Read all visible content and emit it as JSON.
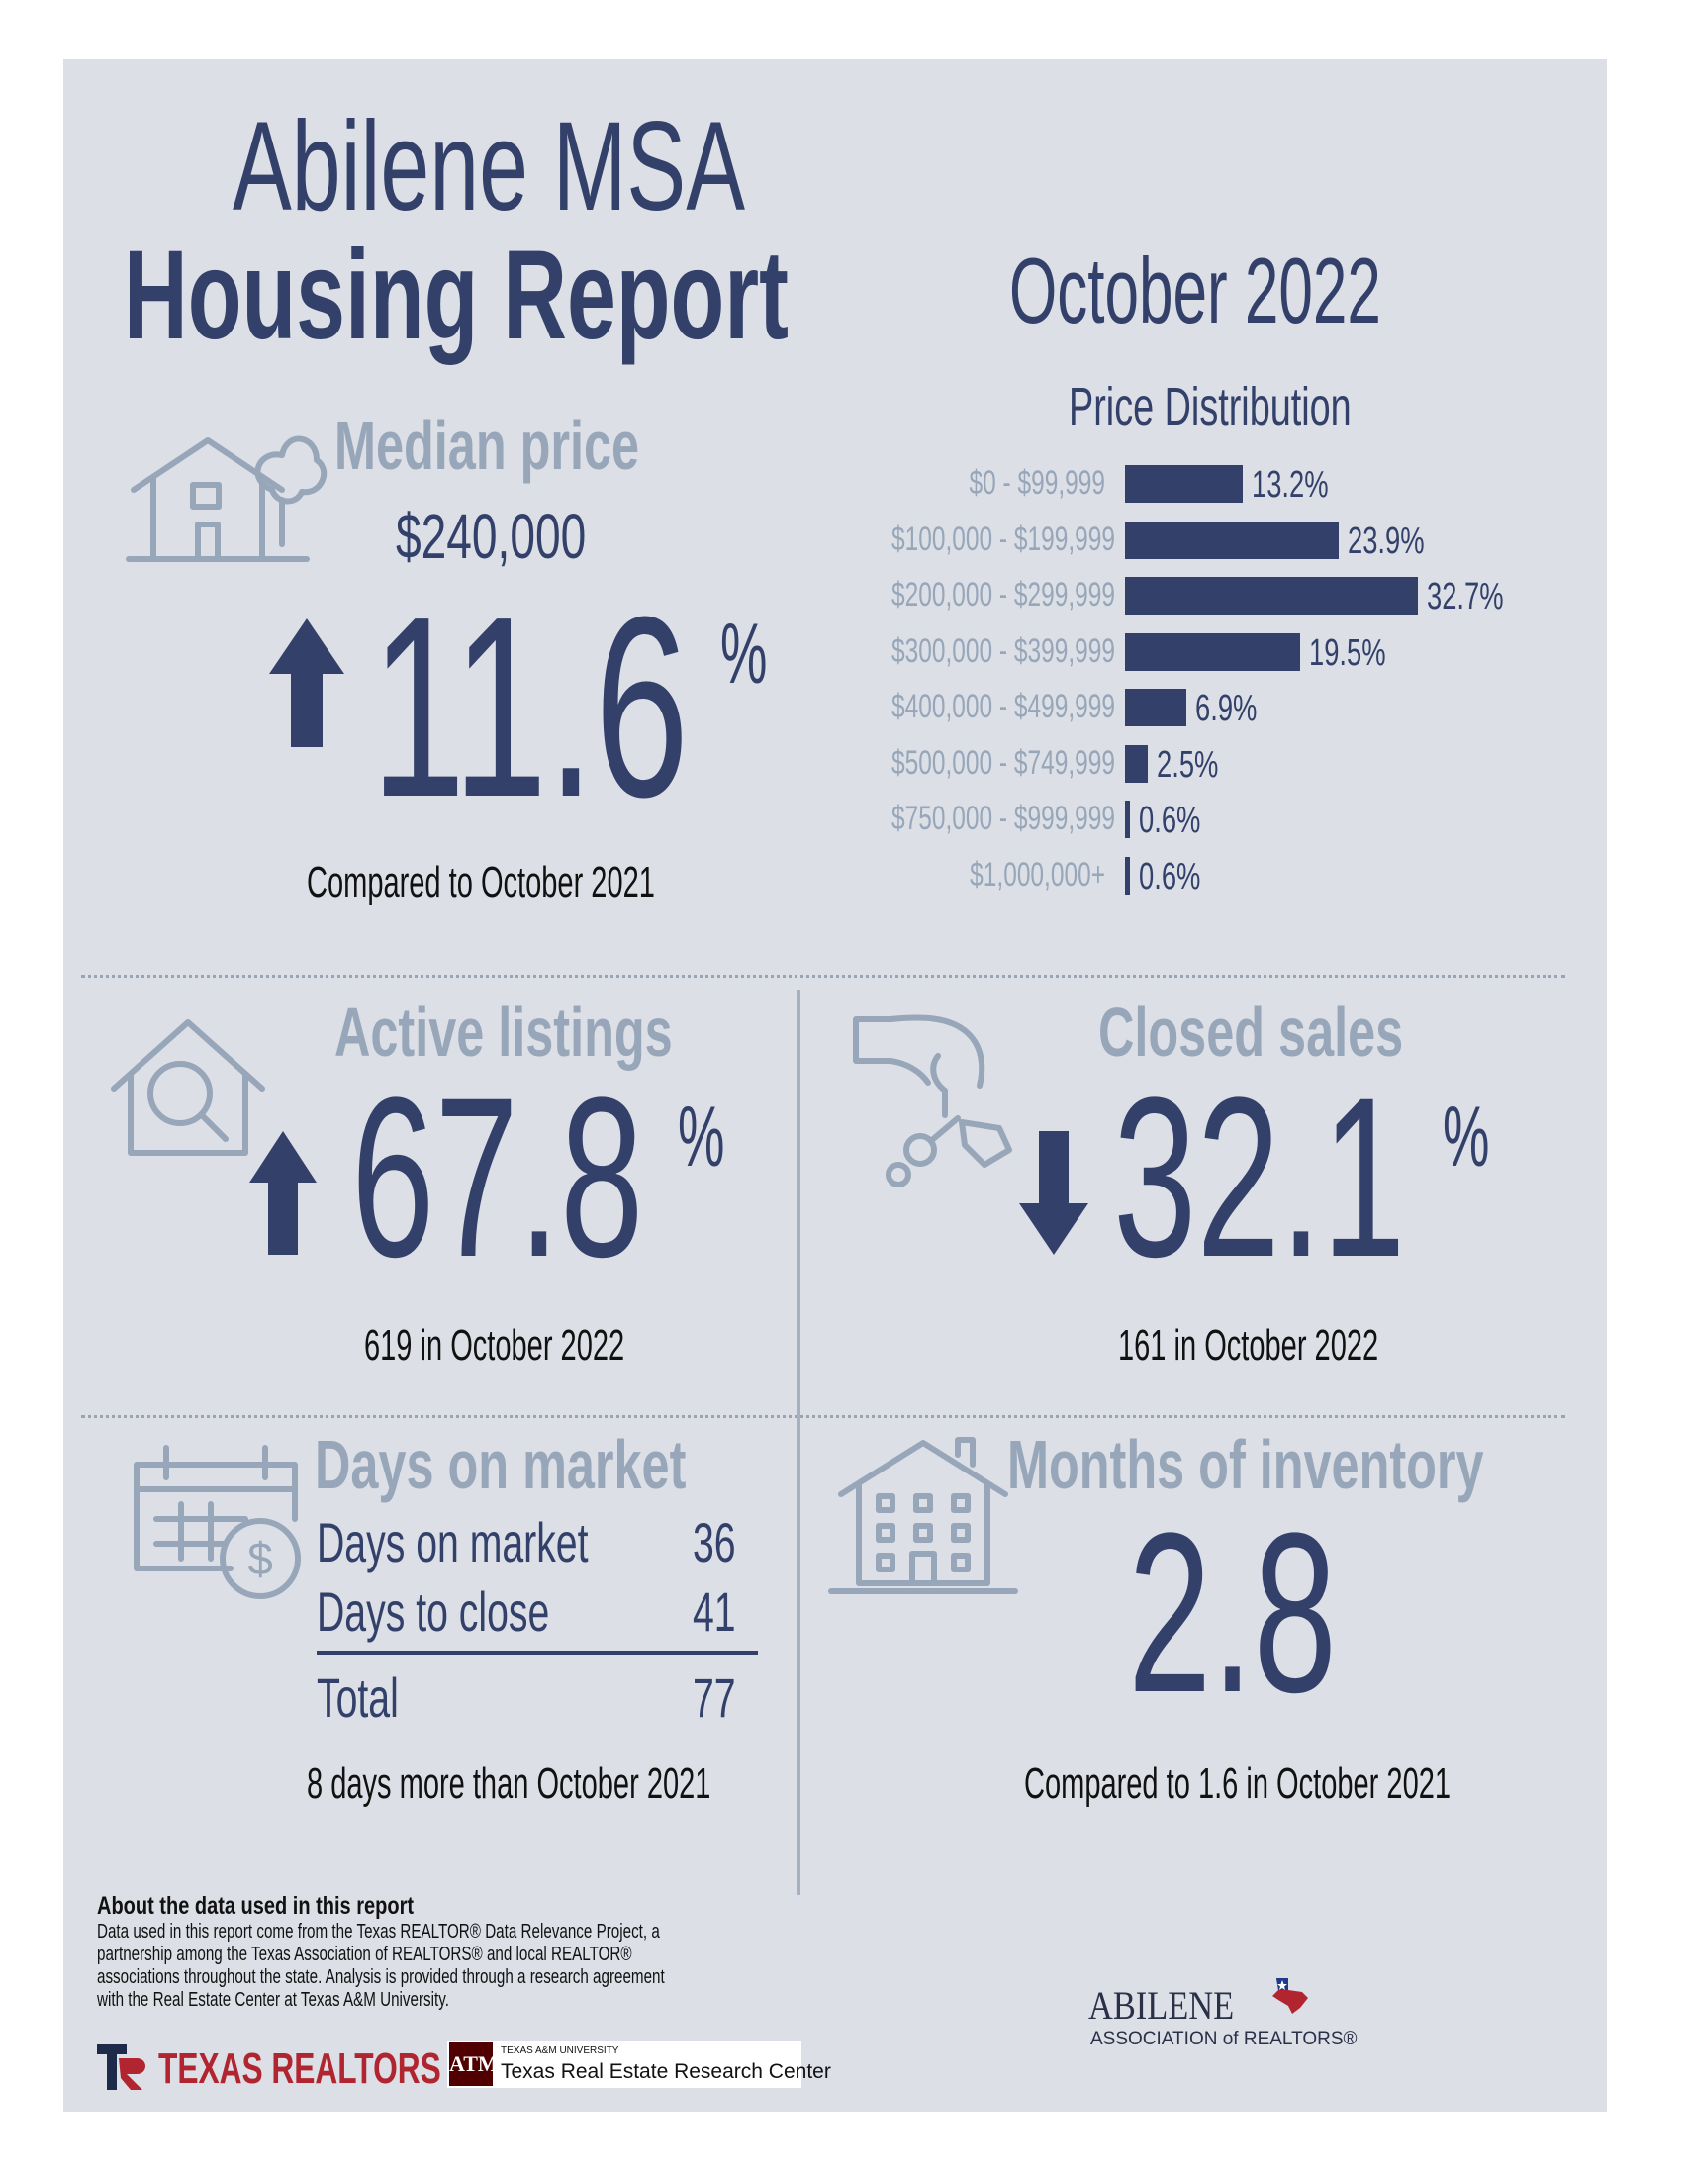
{
  "header": {
    "title_line1": "Abilene MSA",
    "title_line2": "Housing Report",
    "period": "October 2022"
  },
  "median_price": {
    "heading": "Median price",
    "value": "$240,000",
    "change": "11.6",
    "percent_sign": "%",
    "direction": "up",
    "note": "Compared to October 2021",
    "icon": "house-tree-icon"
  },
  "chart_data": {
    "type": "bar",
    "title": "Price Distribution",
    "categories": [
      "$0 - $99,999",
      "$100,000 - $199,999",
      "$200,000 - $299,999",
      "$300,000 - $399,999",
      "$400,000 - $499,999",
      "$500,000 - $749,999",
      "$750,000 - $999,999",
      "$1,000,000+"
    ],
    "values": [
      13.2,
      23.9,
      32.7,
      19.5,
      6.9,
      2.5,
      0.6,
      0.6
    ],
    "value_labels": [
      "13.2%",
      "23.9%",
      "32.7%",
      "19.5%",
      "6.9%",
      "2.5%",
      "0.6%",
      "0.6%"
    ],
    "orientation": "horizontal",
    "xlim": [
      0,
      32.7
    ],
    "color": "#33416a"
  },
  "active_listings": {
    "heading": "Active listings",
    "change": "67.8",
    "percent_sign": "%",
    "direction": "up",
    "note": "619 in October 2022",
    "icon": "house-search-icon"
  },
  "closed_sales": {
    "heading": "Closed sales",
    "change": "32.1",
    "percent_sign": "%",
    "direction": "down",
    "note": "161 in October 2022",
    "icon": "hand-keys-icon"
  },
  "days_on_market": {
    "heading": "Days on market",
    "rows": [
      {
        "label": "Days on market",
        "value": "36"
      },
      {
        "label": "Days to close",
        "value": "41"
      }
    ],
    "total_label": "Total",
    "total_value": "77",
    "note": "8 days more than October 2021",
    "icon": "calendar-dollar-icon"
  },
  "months_inventory": {
    "heading": "Months of inventory",
    "value": "2.8",
    "note": "Compared to 1.6 in October 2021",
    "icon": "building-icon"
  },
  "footer": {
    "about_heading": "About the data used in this report",
    "about_lines": [
      "Data used in this report come from the Texas REALTOR® Data Relevance Project, a",
      "partnership among the Texas Association of REALTORS® and local REALTOR®",
      "associations throughout the state. Analysis is provided through a research agreement",
      "with the Real Estate Center at Texas A&M University."
    ],
    "texas_realtors_logo": "TEXAS REALTORS",
    "tamu_small": "TEXAS A&M UNIVERSITY",
    "tamu_center": "Texas Real Estate Research Center",
    "abilene_logo_line1": "ABILENE",
    "abilene_logo_line2": "ASSOCIATION of REALTORS®"
  },
  "colors": {
    "navy": "#33416a",
    "grey_blue": "#97a6b9",
    "background": "#dcdfe6",
    "texas_red": "#b0252f",
    "tamu_maroon": "#500000"
  }
}
